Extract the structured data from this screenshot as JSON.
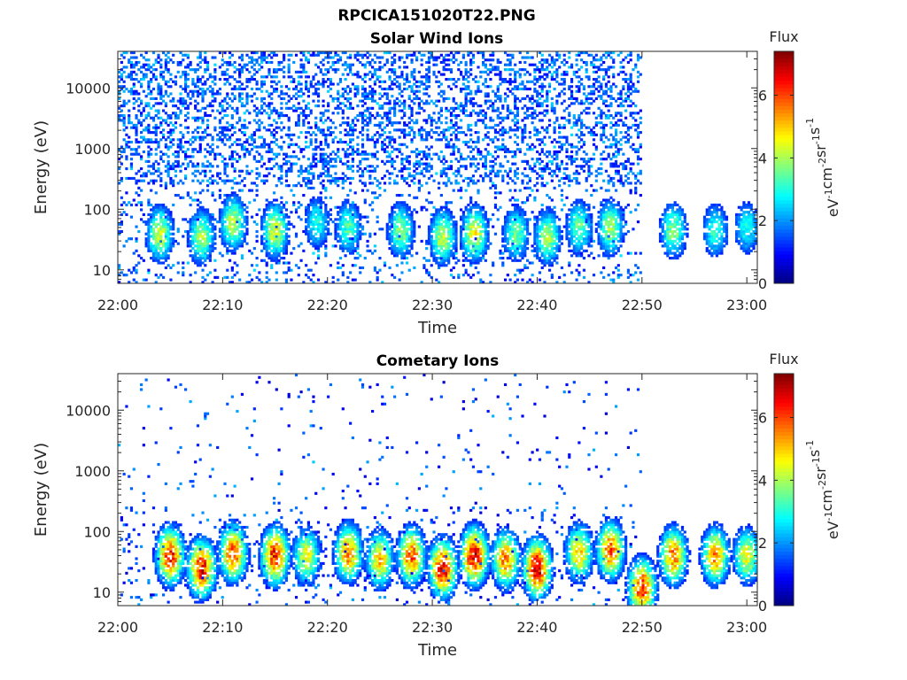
{
  "figure": {
    "filename": "RPCICA151020T22.PNG"
  },
  "chart_data": [
    {
      "type": "heatmap",
      "title": "Solar Wind Ions",
      "xlabel": "Time",
      "ylabel": "Energy (eV)",
      "x_ticks": [
        "22:00",
        "22:10",
        "22:20",
        "22:30",
        "22:40",
        "22:50",
        "23:00"
      ],
      "y_ticks": [
        "10",
        "100",
        "1000",
        "10000"
      ],
      "y_scale": "log",
      "ylim_eV": [
        6,
        40000
      ],
      "xlim": [
        "22:00",
        "23:01"
      ],
      "colorbar": {
        "label": "Flux",
        "unit_label": "eV-1cm-2sr-1s-1",
        "ticks": [
          "0",
          "2",
          "4",
          "6"
        ],
        "range": [
          0,
          7.4
        ]
      },
      "features": {
        "broad_background_upto": "22:50",
        "background_energy_range_eV": [
          300,
          20000
        ],
        "bursts": [
          {
            "t": "22:04",
            "center_eV": 40,
            "peak": 4.3
          },
          {
            "t": "22:08",
            "center_eV": 35,
            "peak": 4.0
          },
          {
            "t": "22:11",
            "center_eV": 60,
            "peak": 4.2
          },
          {
            "t": "22:15",
            "center_eV": 45,
            "peak": 4.4
          },
          {
            "t": "22:19",
            "center_eV": 60,
            "peak": 3.0
          },
          {
            "t": "22:22",
            "center_eV": 50,
            "peak": 3.4
          },
          {
            "t": "22:27",
            "center_eV": 45,
            "peak": 3.8
          },
          {
            "t": "22:31",
            "center_eV": 35,
            "peak": 4.2
          },
          {
            "t": "22:34",
            "center_eV": 40,
            "peak": 4.6
          },
          {
            "t": "22:38",
            "center_eV": 40,
            "peak": 3.6
          },
          {
            "t": "22:41",
            "center_eV": 35,
            "peak": 4.0
          },
          {
            "t": "22:44",
            "center_eV": 50,
            "peak": 3.6
          },
          {
            "t": "22:47",
            "center_eV": 50,
            "peak": 4.0
          },
          {
            "t": "22:53",
            "center_eV": 45,
            "peak": 3.8
          },
          {
            "t": "22:57",
            "center_eV": 45,
            "peak": 3.2
          },
          {
            "t": "23:00",
            "center_eV": 50,
            "peak": 3.0
          }
        ]
      }
    },
    {
      "type": "heatmap",
      "title": "Cometary Ions",
      "xlabel": "Time",
      "ylabel": "Energy (eV)",
      "x_ticks": [
        "22:00",
        "22:10",
        "22:20",
        "22:30",
        "22:40",
        "22:50",
        "23:00"
      ],
      "y_ticks": [
        "10",
        "100",
        "1000",
        "10000"
      ],
      "y_scale": "log",
      "ylim_eV": [
        6,
        40000
      ],
      "xlim": [
        "22:00",
        "23:01"
      ],
      "colorbar": {
        "label": "Flux",
        "unit_label": "eV-1cm-2sr-1s-1",
        "ticks": [
          "0",
          "2",
          "4",
          "6"
        ],
        "range": [
          0,
          7.4
        ]
      },
      "features": {
        "sparse_background_upto": "22:50",
        "bursts": [
          {
            "t": "22:05",
            "center_eV": 40,
            "peak": 6.3
          },
          {
            "t": "22:08",
            "center_eV": 25,
            "peak": 6.5
          },
          {
            "t": "22:11",
            "center_eV": 45,
            "peak": 6.0
          },
          {
            "t": "22:15",
            "center_eV": 40,
            "peak": 6.3
          },
          {
            "t": "22:18",
            "center_eV": 40,
            "peak": 4.5
          },
          {
            "t": "22:22",
            "center_eV": 45,
            "peak": 5.6
          },
          {
            "t": "22:25",
            "center_eV": 35,
            "peak": 5.0
          },
          {
            "t": "22:28",
            "center_eV": 40,
            "peak": 5.8
          },
          {
            "t": "22:31",
            "center_eV": 25,
            "peak": 6.6
          },
          {
            "t": "22:34",
            "center_eV": 40,
            "peak": 6.8
          },
          {
            "t": "22:37",
            "center_eV": 35,
            "peak": 5.6
          },
          {
            "t": "22:40",
            "center_eV": 25,
            "peak": 6.9
          },
          {
            "t": "22:44",
            "center_eV": 45,
            "peak": 5.0
          },
          {
            "t": "22:47",
            "center_eV": 50,
            "peak": 5.8
          },
          {
            "t": "22:50",
            "center_eV": 12,
            "peak": 6.2
          },
          {
            "t": "22:53",
            "center_eV": 40,
            "peak": 5.6
          },
          {
            "t": "22:57",
            "center_eV": 40,
            "peak": 5.4
          },
          {
            "t": "23:00",
            "center_eV": 40,
            "peak": 4.5
          }
        ]
      }
    }
  ]
}
